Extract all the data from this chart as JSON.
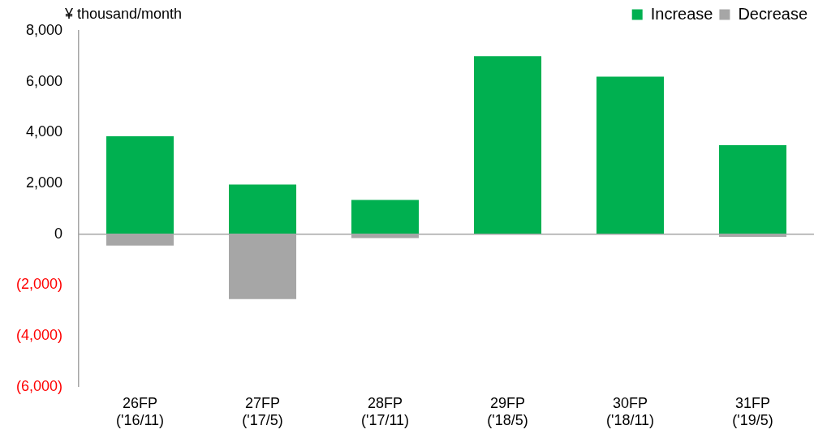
{
  "chart_data": {
    "type": "bar",
    "stacked": true,
    "ylabel": "¥ thousand/month",
    "categories": [
      "26FP\n('16/11)",
      "27FP\n('17/5)",
      "28FP\n('17/11)",
      "29FP\n('18/5)",
      "30FP\n('18/11)",
      "31FP\n('19/5)"
    ],
    "series": [
      {
        "name": "Increase",
        "color": "#00b050",
        "values": [
          3850,
          1950,
          1350,
          7000,
          6200,
          3500
        ]
      },
      {
        "name": "Decrease",
        "color": "#a6a6a6",
        "values": [
          -450,
          -2550,
          -150,
          0,
          0,
          -100
        ]
      }
    ],
    "ylim": [
      -6000,
      8000
    ],
    "yticks": [
      {
        "value": -6000,
        "label": "(6,000)"
      },
      {
        "value": -4000,
        "label": "(4,000)"
      },
      {
        "value": -2000,
        "label": "(2,000)"
      },
      {
        "value": 0,
        "label": "0"
      },
      {
        "value": 2000,
        "label": "2,000"
      },
      {
        "value": 4000,
        "label": "4,000"
      },
      {
        "value": 6000,
        "label": "6,000"
      },
      {
        "value": 8000,
        "label": "8,000"
      }
    ],
    "ref_lines": [
      {
        "axis": "y",
        "value": 0,
        "color": "#a6a6a6"
      }
    ],
    "legend": "top right"
  }
}
